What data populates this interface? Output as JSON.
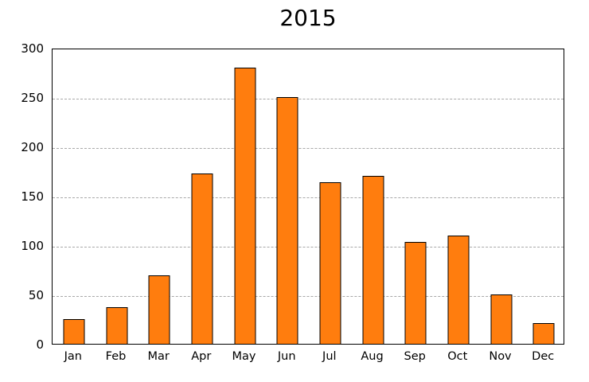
{
  "chart_data": {
    "type": "bar",
    "title": "2015",
    "categories": [
      "Jan",
      "Feb",
      "Mar",
      "Apr",
      "May",
      "Jun",
      "Jul",
      "Aug",
      "Sep",
      "Oct",
      "Nov",
      "Dec"
    ],
    "values": [
      25,
      37,
      69,
      173,
      280,
      250,
      164,
      170,
      103,
      110,
      50,
      21
    ],
    "xlabel": "",
    "ylabel": "",
    "ylim": [
      0,
      300
    ],
    "ytick_step": 50,
    "ytick_labels": [
      "0",
      "50",
      "100",
      "150",
      "200",
      "250",
      "300"
    ],
    "grid": true,
    "legend": "none",
    "colors": {
      "bar_fill": "#ff7d0e",
      "bar_edge": "#000000",
      "gridline": "#a8a8a8",
      "text": "#000000",
      "background": "#ffffff"
    }
  }
}
